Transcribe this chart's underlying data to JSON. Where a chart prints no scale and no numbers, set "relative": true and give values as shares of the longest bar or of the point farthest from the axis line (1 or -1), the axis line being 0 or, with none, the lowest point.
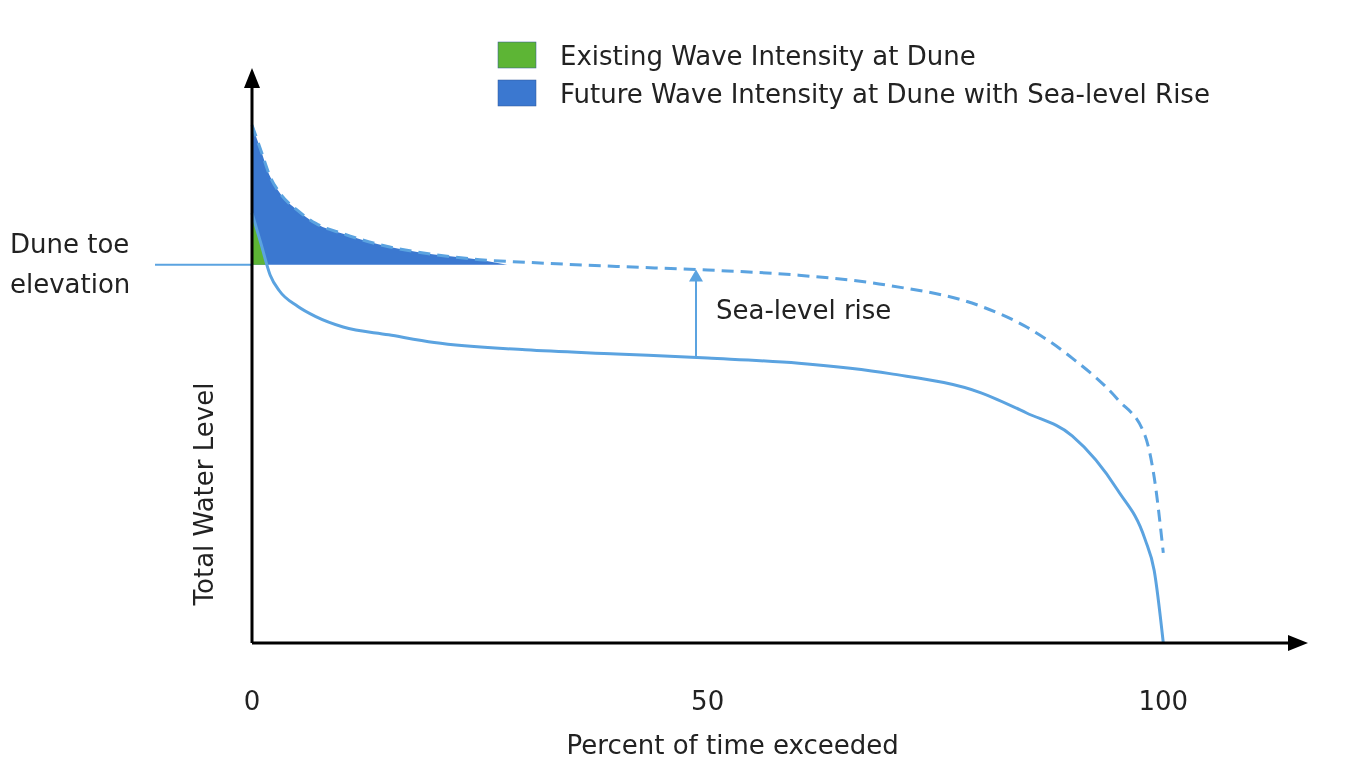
{
  "chart_data": {
    "type": "line",
    "relative": true,
    "xlabel": "Percent of time exceeded",
    "ylabel": "Total Water Level",
    "xlim": [
      0,
      115
    ],
    "xticks": [
      0,
      50,
      100
    ],
    "tick_labels": "x",
    "legend": "top right",
    "series": [
      {
        "color": "#5ba3e0",
        "line_style": "solid",
        "x": [
          0,
          1,
          2,
          3,
          5,
          7,
          10,
          15,
          20,
          30,
          40,
          50,
          60,
          70,
          80,
          85,
          90,
          95,
          98,
          99,
          100
        ],
        "values": [
          0.83,
          0.77,
          0.71,
          0.68,
          0.65,
          0.63,
          0.61,
          0.595,
          0.58,
          0.566,
          0.558,
          0.55,
          0.54,
          0.52,
          0.483,
          0.444,
          0.4,
          0.295,
          0.2,
          0.14,
          0
        ]
      },
      {
        "color": "#5ba3e0",
        "line_style": "dashed",
        "x": [
          0,
          1,
          2,
          3,
          5,
          7,
          10,
          15,
          20,
          25,
          30,
          40,
          50,
          60,
          70,
          80,
          85,
          90,
          95,
          98,
          99,
          100
        ],
        "values": [
          1,
          0.95,
          0.9,
          0.87,
          0.835,
          0.81,
          0.79,
          0.765,
          0.75,
          0.74,
          0.735,
          0.727,
          0.72,
          0.71,
          0.69,
          0.65,
          0.61,
          0.55,
          0.47,
          0.4,
          0.32,
          0.174
        ]
      },
      {
        "type": "area",
        "name": "Existing Wave Intensity at Dune",
        "color": "#5db535",
        "x": [
          0,
          1,
          1.8
        ],
        "values": [
          0.83,
          0.77,
          0.73
        ]
      },
      {
        "type": "area",
        "name": "Future Wave Intensity at Dune with Sea-level Rise",
        "color": "#3b78d0",
        "x": [
          0,
          1,
          2,
          3,
          5,
          7,
          10,
          15,
          20,
          25,
          28
        ],
        "values": [
          1,
          0.95,
          0.9,
          0.87,
          0.835,
          0.81,
          0.79,
          0.765,
          0.75,
          0.74,
          0.73
        ]
      }
    ],
    "ref_lines": [
      {
        "axis": "y",
        "value": 0.73,
        "label": "Dune toe elevation",
        "color": "#5ba3e0"
      }
    ],
    "annotations": [
      "Sea-level rise"
    ]
  }
}
